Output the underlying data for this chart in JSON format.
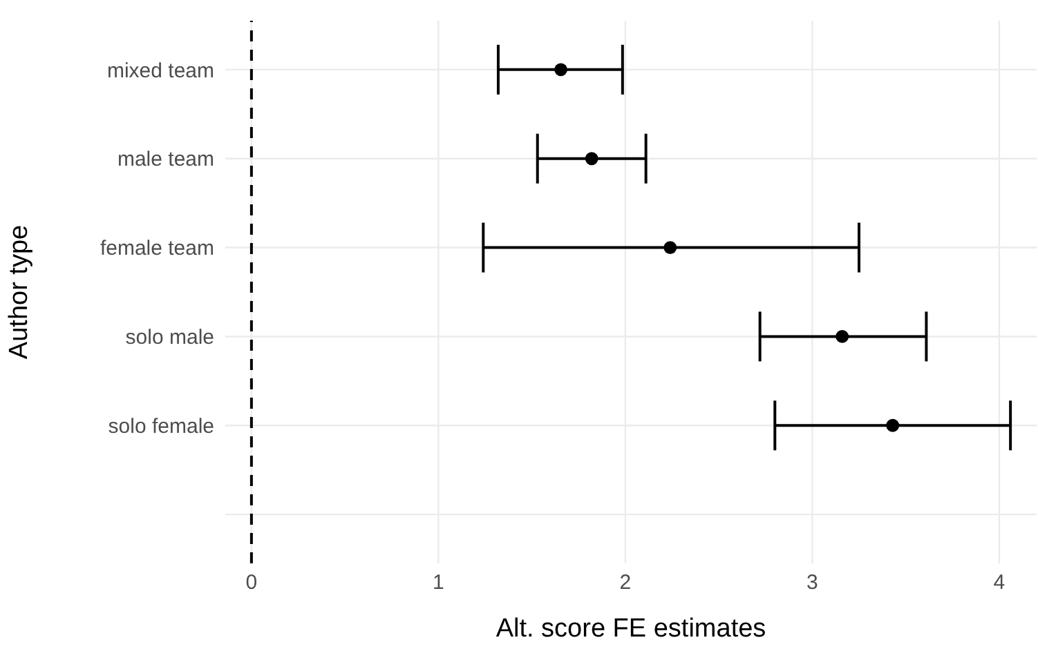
{
  "chart_data": {
    "type": "scatter",
    "xlabel": "Alt. score FE estimates",
    "ylabel": "Author type",
    "categories": [
      "mixed team",
      "male team",
      "female team",
      "solo male",
      "solo female",
      null
    ],
    "values": [
      1.655,
      1.82,
      2.24,
      3.16,
      3.43,
      null
    ],
    "errors": [
      [
        1.32,
        1.985
      ],
      [
        1.53,
        2.11
      ],
      [
        1.24,
        3.25
      ],
      [
        2.72,
        3.61
      ],
      [
        2.8,
        4.06
      ],
      null
    ],
    "color": "#000000",
    "marker": "circle",
    "orientation": "horizontal",
    "xlim": [
      -0.14,
      4.2
    ],
    "xticks": [
      0,
      1,
      2,
      3,
      4
    ],
    "ref_lines": [
      {
        "axis": "x",
        "value": 0,
        "color": "#000000",
        "line_style": "dashed"
      }
    ],
    "grid": true,
    "legend": false
  }
}
